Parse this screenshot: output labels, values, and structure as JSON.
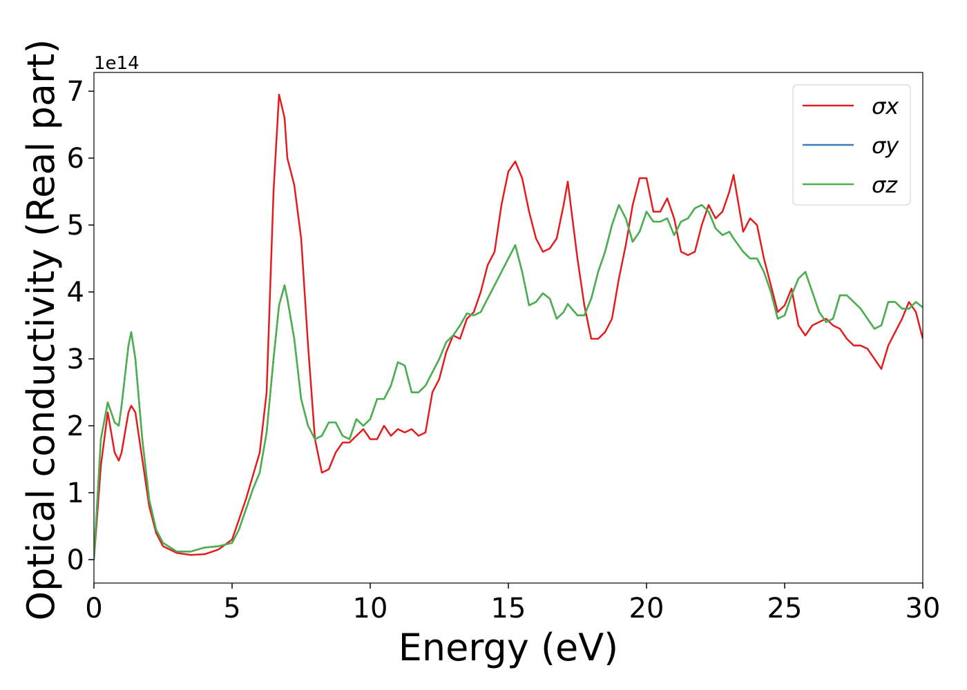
{
  "chart_data": {
    "type": "line",
    "xlabel": "Energy (eV)",
    "ylabel": "Optical conductivity (Real part)",
    "y_offset_label": "1e14",
    "xlim": [
      0,
      30
    ],
    "ylim": [
      -0.35,
      7.28
    ],
    "xticks": [
      0,
      5,
      10,
      15,
      20,
      25,
      30
    ],
    "yticks": [
      0,
      1,
      2,
      3,
      4,
      5,
      6,
      7
    ],
    "legend": "upper right",
    "x": [
      0,
      0.25,
      0.5,
      0.75,
      0.9,
      1,
      1.25,
      1.35,
      1.5,
      1.75,
      2,
      2.25,
      2.5,
      3,
      3.5,
      4,
      4.5,
      5,
      5.25,
      5.5,
      5.75,
      6,
      6.25,
      6.5,
      6.7,
      6.9,
      7,
      7.25,
      7.5,
      7.75,
      8,
      8.25,
      8.5,
      8.75,
      9,
      9.25,
      9.5,
      9.75,
      10,
      10.25,
      10.5,
      10.75,
      11,
      11.25,
      11.5,
      11.75,
      12,
      12.25,
      12.5,
      12.75,
      13,
      13.25,
      13.5,
      13.75,
      14,
      14.25,
      14.5,
      14.75,
      15,
      15.25,
      15.5,
      15.75,
      16,
      16.25,
      16.5,
      16.75,
      17,
      17.15,
      17.5,
      17.75,
      18,
      18.25,
      18.5,
      18.75,
      19,
      19.25,
      19.5,
      19.75,
      20,
      20.25,
      20.5,
      20.75,
      21,
      21.25,
      21.5,
      21.75,
      22,
      22.25,
      22.5,
      22.75,
      23,
      23.15,
      23.5,
      23.75,
      24,
      24.25,
      24.5,
      24.75,
      25,
      25.25,
      25.5,
      25.75,
      26,
      26.25,
      26.5,
      26.75,
      27,
      27.25,
      27.5,
      27.75,
      28,
      28.25,
      28.5,
      28.75,
      29,
      29.25,
      29.5,
      29.75,
      30
    ],
    "series": [
      {
        "name": "σx",
        "color": "#e41a1c",
        "values": [
          0,
          1.4,
          2.2,
          1.6,
          1.48,
          1.6,
          2.2,
          2.3,
          2.2,
          1.5,
          0.8,
          0.4,
          0.2,
          0.1,
          0.07,
          0.08,
          0.15,
          0.3,
          0.6,
          0.9,
          1.25,
          1.6,
          2.5,
          5.5,
          6.95,
          6.6,
          6.0,
          5.6,
          4.8,
          3.2,
          1.8,
          1.3,
          1.35,
          1.6,
          1.75,
          1.75,
          1.85,
          1.95,
          1.8,
          1.8,
          2.0,
          1.85,
          1.95,
          1.9,
          1.95,
          1.85,
          1.9,
          2.5,
          2.7,
          3.1,
          3.35,
          3.3,
          3.6,
          3.7,
          4.0,
          4.4,
          4.6,
          5.3,
          5.8,
          5.95,
          5.7,
          5.2,
          4.8,
          4.6,
          4.65,
          4.8,
          5.3,
          5.65,
          4.5,
          3.8,
          3.3,
          3.3,
          3.4,
          3.6,
          4.2,
          4.7,
          5.3,
          5.7,
          5.7,
          5.2,
          5.2,
          5.4,
          5.1,
          4.6,
          4.55,
          4.6,
          5.0,
          5.3,
          5.1,
          5.2,
          5.5,
          5.75,
          4.9,
          5.1,
          5.0,
          4.5,
          4.1,
          3.7,
          3.8,
          4.05,
          3.5,
          3.35,
          3.5,
          3.55,
          3.6,
          3.5,
          3.45,
          3.3,
          3.2,
          3.2,
          3.15,
          3.0,
          2.85,
          3.2,
          3.4,
          3.6,
          3.85,
          3.7,
          3.3
        ]
      },
      {
        "name": "σy",
        "color": "#377eb8",
        "values": [
          0,
          1.8,
          2.35,
          2.05,
          2.0,
          2.3,
          3.2,
          3.4,
          3.0,
          1.8,
          0.9,
          0.45,
          0.25,
          0.12,
          0.12,
          0.18,
          0.2,
          0.25,
          0.45,
          0.75,
          1.05,
          1.3,
          1.9,
          3.0,
          3.8,
          4.1,
          3.9,
          3.3,
          2.4,
          2.0,
          1.8,
          1.85,
          2.05,
          2.05,
          1.85,
          1.8,
          2.1,
          2.0,
          2.1,
          2.4,
          2.4,
          2.6,
          2.95,
          2.9,
          2.5,
          2.5,
          2.6,
          2.8,
          3.0,
          3.25,
          3.35,
          3.5,
          3.68,
          3.65,
          3.7,
          3.9,
          4.1,
          4.3,
          4.5,
          4.7,
          4.3,
          3.8,
          3.85,
          3.98,
          3.9,
          3.6,
          3.7,
          3.82,
          3.65,
          3.65,
          3.9,
          4.3,
          4.6,
          5.0,
          5.3,
          5.1,
          4.75,
          4.9,
          5.2,
          5.05,
          5.05,
          5.1,
          4.85,
          5.05,
          5.1,
          5.25,
          5.3,
          5.2,
          4.95,
          4.85,
          4.9,
          4.8,
          4.6,
          4.5,
          4.5,
          4.3,
          4.0,
          3.6,
          3.65,
          3.95,
          4.2,
          4.3,
          4.0,
          3.7,
          3.55,
          3.6,
          3.95,
          3.95,
          3.85,
          3.75,
          3.6,
          3.45,
          3.5,
          3.85,
          3.85,
          3.75,
          3.75,
          3.85,
          3.77
        ]
      },
      {
        "name": "σz",
        "color": "#4daf4a",
        "values": [
          0,
          1.8,
          2.35,
          2.05,
          2.0,
          2.3,
          3.2,
          3.4,
          3.0,
          1.8,
          0.9,
          0.45,
          0.25,
          0.12,
          0.12,
          0.18,
          0.2,
          0.25,
          0.45,
          0.75,
          1.05,
          1.3,
          1.9,
          3.0,
          3.8,
          4.1,
          3.9,
          3.3,
          2.4,
          2.0,
          1.8,
          1.85,
          2.05,
          2.05,
          1.85,
          1.8,
          2.1,
          2.0,
          2.1,
          2.4,
          2.4,
          2.6,
          2.95,
          2.9,
          2.5,
          2.5,
          2.6,
          2.8,
          3.0,
          3.25,
          3.35,
          3.5,
          3.68,
          3.65,
          3.7,
          3.9,
          4.1,
          4.3,
          4.5,
          4.7,
          4.3,
          3.8,
          3.85,
          3.98,
          3.9,
          3.6,
          3.7,
          3.82,
          3.65,
          3.65,
          3.9,
          4.3,
          4.6,
          5.0,
          5.3,
          5.1,
          4.75,
          4.9,
          5.2,
          5.05,
          5.05,
          5.1,
          4.85,
          5.05,
          5.1,
          5.25,
          5.3,
          5.2,
          4.95,
          4.85,
          4.9,
          4.8,
          4.6,
          4.5,
          4.5,
          4.3,
          4.0,
          3.6,
          3.65,
          3.95,
          4.2,
          4.3,
          4.0,
          3.7,
          3.55,
          3.6,
          3.95,
          3.95,
          3.85,
          3.75,
          3.6,
          3.45,
          3.5,
          3.85,
          3.85,
          3.75,
          3.75,
          3.85,
          3.77
        ]
      }
    ]
  }
}
